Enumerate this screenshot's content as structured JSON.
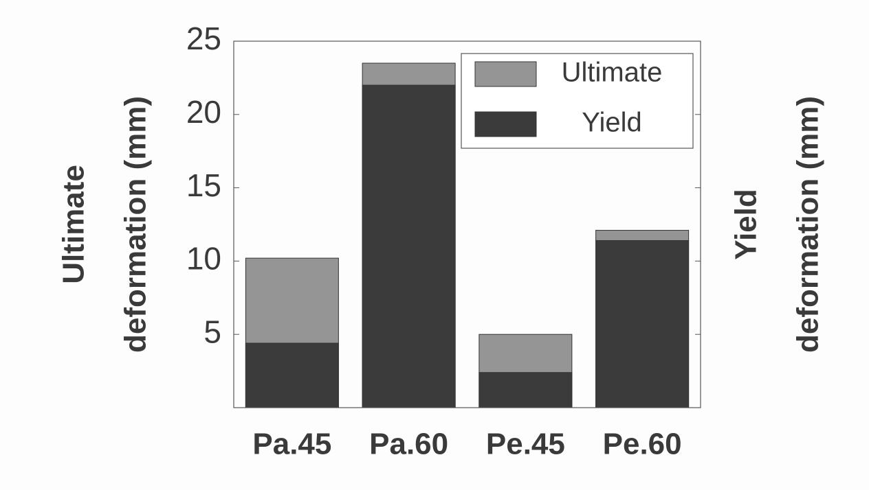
{
  "chart_data": {
    "type": "bar",
    "overlay": true,
    "ylabel": [
      "Ultimate",
      "deformation (mm)"
    ],
    "y2label": [
      "Yield",
      "deformation (mm)"
    ],
    "categories": [
      "Pa.45",
      "Pa.60",
      "Pe.45",
      "Pe.60"
    ],
    "series": [
      {
        "name": "Ultimate",
        "color": "#959595",
        "values": [
          10.2,
          23.5,
          5.0,
          12.1
        ]
      },
      {
        "name": "Yield",
        "color": "#3b3b3b",
        "values": [
          4.4,
          22.0,
          2.4,
          11.4
        ]
      }
    ],
    "ylim": [
      0,
      25
    ],
    "yticks": [
      5,
      10,
      15,
      20,
      25
    ],
    "legend": "upper right"
  }
}
